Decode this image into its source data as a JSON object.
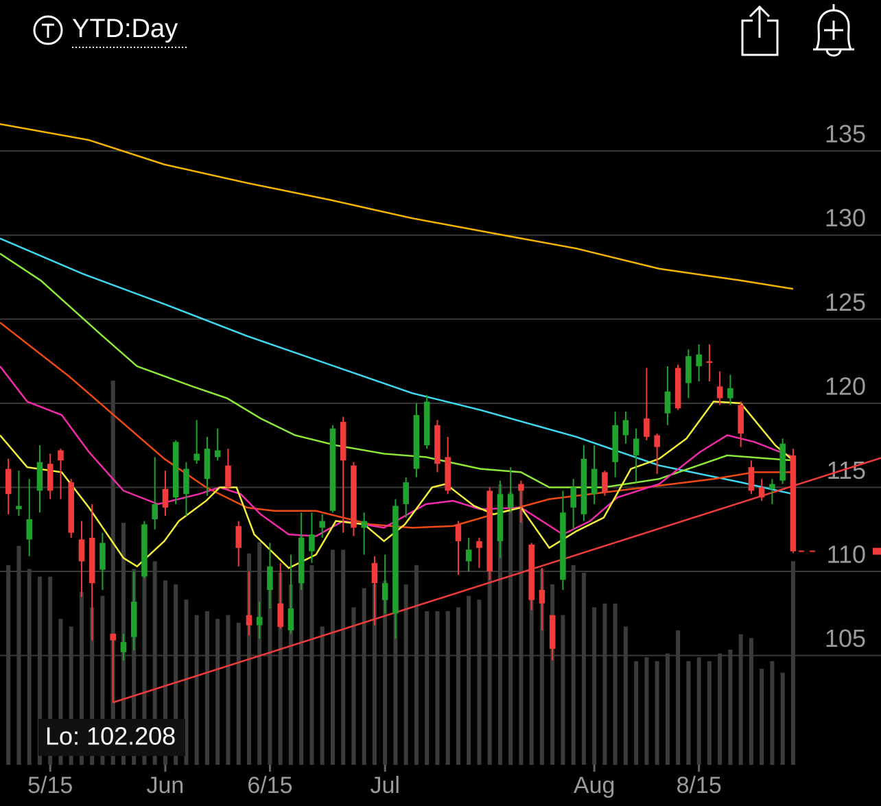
{
  "header": {
    "title": "YTD:Day"
  },
  "chart_data": {
    "type": "candlestick",
    "categories": [
      null,
      null,
      null,
      null,
      "5/15",
      null,
      null,
      null,
      null,
      null,
      null,
      null,
      null,
      null,
      null,
      "Jun",
      null,
      null,
      null,
      null,
      null,
      null,
      null,
      null,
      null,
      "6/15",
      null,
      null,
      null,
      null,
      null,
      null,
      null,
      null,
      null,
      null,
      "Jul",
      null,
      null,
      null,
      null,
      null,
      null,
      null,
      null,
      null,
      null,
      null,
      null,
      null,
      null,
      null,
      null,
      null,
      null,
      null,
      "Aug",
      null,
      null,
      null,
      null,
      null,
      null,
      null,
      null,
      null,
      "8/15",
      null,
      null,
      null,
      null,
      null,
      null,
      null,
      null,
      null
    ],
    "open": [
      116.1,
      113.7,
      111.9,
      114.8,
      116.4,
      117.2,
      115.3,
      111.9,
      112,
      110.1,
      106.3,
      105.2,
      106.1,
      109.7,
      113.1,
      114.9,
      114.4,
      114.6,
      116.6,
      115.5,
      116.8,
      116.3,
      112.7,
      107.4,
      106.8,
      108.9,
      108.1,
      106.5,
      109.3,
      111.2,
      112.6,
      113.6,
      118.9,
      116.3,
      112.6,
      110.5,
      108.3,
      107.5,
      114,
      116.1,
      117.5,
      118.7,
      116.8,
      112.8,
      110.6,
      111.8,
      114.8,
      111.8,
      113.8,
      115.2,
      111.6,
      108.9,
      107.4,
      109.5,
      113.8,
      113.4,
      114.6,
      115.9,
      116.5,
      118.1,
      116.9,
      119.1,
      118.1,
      119.4,
      122.1,
      121.2,
      122.2,
      122.5,
      121,
      120.3,
      119.9,
      116.2,
      115,
      114.9,
      115.4,
      116.9
    ],
    "high": [
      116.7,
      116,
      115.5,
      117.5,
      117,
      117.3,
      115.5,
      113,
      114,
      112.3,
      106.3,
      106.3,
      110,
      113,
      116.8,
      116,
      117.8,
      116.5,
      119,
      118,
      118.5,
      117.3,
      113,
      110,
      108.2,
      111.7,
      110.5,
      111,
      113.5,
      113.5,
      113.4,
      118.7,
      119.2,
      116.5,
      113.5,
      110.9,
      111,
      114.3,
      115.6,
      120,
      120.5,
      119,
      118,
      113,
      112,
      112,
      115,
      115.4,
      116.2,
      115.4,
      111.7,
      110.2,
      107.4,
      114.8,
      115.5,
      117.5,
      117.5,
      116,
      119.5,
      119.5,
      118.5,
      122.1,
      118.2,
      122.2,
      122.3,
      123.2,
      123.5,
      123.5,
      121.9,
      121.7,
      120.1,
      116.6,
      115.5,
      115.5,
      117.9,
      117.3
    ],
    "low": [
      113.4,
      113.3,
      110.9,
      113.5,
      114.3,
      114.3,
      112,
      108.5,
      105.9,
      108.9,
      102.208,
      104.7,
      105.3,
      109.6,
      112.5,
      113.3,
      114,
      113.3,
      116.4,
      114.5,
      116.6,
      114.8,
      110.3,
      106.2,
      106,
      107.8,
      106.6,
      106.3,
      108.9,
      110.5,
      112,
      113.5,
      112.3,
      112.1,
      111,
      106.8,
      107.5,
      106,
      113.2,
      115.6,
      117.3,
      115.9,
      114.6,
      109.8,
      110,
      110.2,
      109.5,
      110.8,
      113.5,
      112.9,
      107.7,
      106.5,
      104.7,
      108.9,
      112.5,
      113,
      114,
      114.5,
      115.6,
      117.6,
      115.3,
      117.8,
      115.8,
      118.7,
      119.6,
      120.3,
      121.3,
      121.3,
      119.9,
      119.9,
      117.4,
      114.6,
      114.2,
      114,
      115.2,
      111.1
    ],
    "close": [
      114.6,
      113.9,
      113.1,
      116.5,
      114.8,
      116.6,
      112.3,
      110.6,
      109.3,
      111.7,
      105.9,
      105.8,
      108.2,
      112.8,
      114,
      113.8,
      117.7,
      116.1,
      117,
      117.3,
      117.2,
      115,
      111.4,
      106.8,
      107.3,
      110.3,
      106.7,
      107.8,
      112,
      112.2,
      113,
      118.5,
      116.6,
      112.6,
      113,
      109.3,
      109.3,
      113.9,
      115.3,
      119.3,
      120.1,
      116.4,
      114.8,
      111.8,
      111.3,
      111.4,
      110,
      114.6,
      114.6,
      114.8,
      108.3,
      108.1,
      105.4,
      113.5,
      115,
      116.7,
      116.1,
      114.7,
      118.7,
      119,
      117.9,
      118,
      117.4,
      120.7,
      119.7,
      122.8,
      122.9,
      122.4,
      120.3,
      120.9,
      118.2,
      114.8,
      114.4,
      115.2,
      117.6,
      111.2
    ],
    "volume": [
      52,
      57,
      51,
      49,
      49,
      38,
      36,
      45,
      41,
      44,
      100,
      63,
      51,
      55,
      53,
      48,
      47,
      43,
      39,
      40,
      38,
      39,
      37,
      55,
      58,
      51,
      50,
      47,
      60,
      52,
      36,
      56,
      56,
      41,
      46,
      47,
      48,
      49,
      47,
      52,
      40,
      40,
      40,
      41,
      44,
      43,
      52,
      73,
      71,
      73,
      57,
      51,
      47,
      39,
      52,
      50,
      41,
      42,
      42,
      36,
      27,
      28,
      27,
      29,
      35,
      27,
      28,
      27,
      29,
      30,
      34,
      33,
      25,
      27,
      24,
      53
    ],
    "volume_lim": [
      0,
      100
    ],
    "volume_color": "#3b3b3b",
    "up_color": "#1fa22e",
    "down_color": "#f23b3b",
    "series": [
      {
        "color": "#f5b400",
        "x": [
          -0.8,
          7.7,
          14.9,
          22.8,
          30.7,
          38.6,
          46.4,
          54.3,
          62.2,
          70,
          75
        ],
        "values": [
          136.6,
          135.65,
          134.2,
          133.1,
          132.1,
          131.0,
          130.1,
          129.2,
          128.0,
          127.3,
          126.8
        ]
      },
      {
        "color": "#3fd8f0",
        "x": [
          -0.8,
          7.1,
          14.9,
          22.8,
          30.7,
          38.6,
          45.1,
          54.3,
          62.2,
          70,
          75
        ],
        "values": [
          129.8,
          127.7,
          125.9,
          124.0,
          122.3,
          120.6,
          119.6,
          118.0,
          116.3,
          115.3,
          114.6
        ]
      },
      {
        "color": "#8ee83a",
        "x": [
          -0.8,
          3.1,
          9.0,
          12.3,
          17.6,
          20.9,
          24.1,
          27.4,
          31.3,
          35.9,
          39.9,
          45.1,
          49.0,
          51.7,
          56.9,
          62.2,
          68.7,
          75
        ],
        "values": [
          128.9,
          127.3,
          124.0,
          122.2,
          121.0,
          120.3,
          119.1,
          118.1,
          117.5,
          117.0,
          116.8,
          116.1,
          115.9,
          115.0,
          115.0,
          115.5,
          116.9,
          116.6
        ]
      },
      {
        "color": "#f04a12",
        "x": [
          -0.8,
          5.8,
          9.7,
          14.9,
          18.9,
          22.8,
          25.4,
          29.4,
          34.6,
          38.6,
          42.5,
          46.4,
          51.7,
          56.9,
          62.2,
          67.4,
          71.3,
          75
        ],
        "values": [
          124.8,
          121.6,
          119.5,
          116.7,
          115.0,
          113.8,
          113.6,
          113.6,
          112.8,
          112.6,
          112.7,
          113.4,
          114.3,
          114.7,
          115.1,
          115.5,
          115.9,
          115.9
        ]
      },
      {
        "color": "#f02aa8",
        "x": [
          -0.8,
          1.8,
          5.1,
          7.7,
          11.0,
          14.3,
          18.2,
          20.2,
          22.2,
          24.1,
          26.8,
          29.4,
          32.0,
          35.9,
          39.9,
          42.5,
          45.1,
          49.0,
          53.0,
          55.6,
          58.2,
          62.2,
          66.1,
          68.7,
          71.3,
          75
        ],
        "values": [
          122.2,
          120.1,
          119.3,
          117.1,
          114.8,
          114.0,
          114.6,
          115.0,
          114.6,
          113.4,
          112.2,
          112.1,
          113.0,
          112.6,
          114.0,
          114.2,
          113.7,
          113.8,
          112.2,
          113.0,
          114.4,
          115.2,
          117.1,
          118.1,
          117.7,
          116.8
        ]
      },
      {
        "color": "#f5f03a",
        "x": [
          -0.8,
          1.8,
          5.1,
          7.7,
          11.0,
          12.3,
          14.9,
          16.3,
          18.9,
          20.2,
          21.8,
          23.5,
          26.8,
          29.4,
          31.3,
          34.0,
          35.9,
          37.9,
          40.5,
          41.8,
          44.5,
          46.4,
          49.0,
          51.7,
          54.3,
          56.9,
          59.5,
          62.2,
          64.8,
          67.4,
          70.0,
          73.3,
          75
        ],
        "values": [
          118.1,
          116.2,
          115.9,
          113.8,
          110.8,
          110.3,
          111.8,
          113.0,
          114.2,
          115.0,
          115.0,
          112.2,
          110.2,
          111.0,
          113.0,
          112.8,
          111.8,
          112.8,
          115.0,
          115.2,
          113.9,
          113.4,
          113.8,
          111.4,
          112.4,
          113.2,
          116.1,
          116.7,
          117.9,
          120.1,
          120.0,
          117.5,
          116.6
        ]
      },
      {
        "color": "#f23b3b",
        "x": [
          10,
          83.4
        ],
        "values": [
          102.208,
          116.75
        ]
      }
    ],
    "xlim": [
      -0.8,
      83.4
    ],
    "ylim": [
      98.5,
      139.9
    ],
    "yticks": [
      105,
      110,
      115,
      120,
      125,
      130,
      135
    ],
    "grid": true,
    "annotations": [
      "Lo: 102.208"
    ]
  }
}
